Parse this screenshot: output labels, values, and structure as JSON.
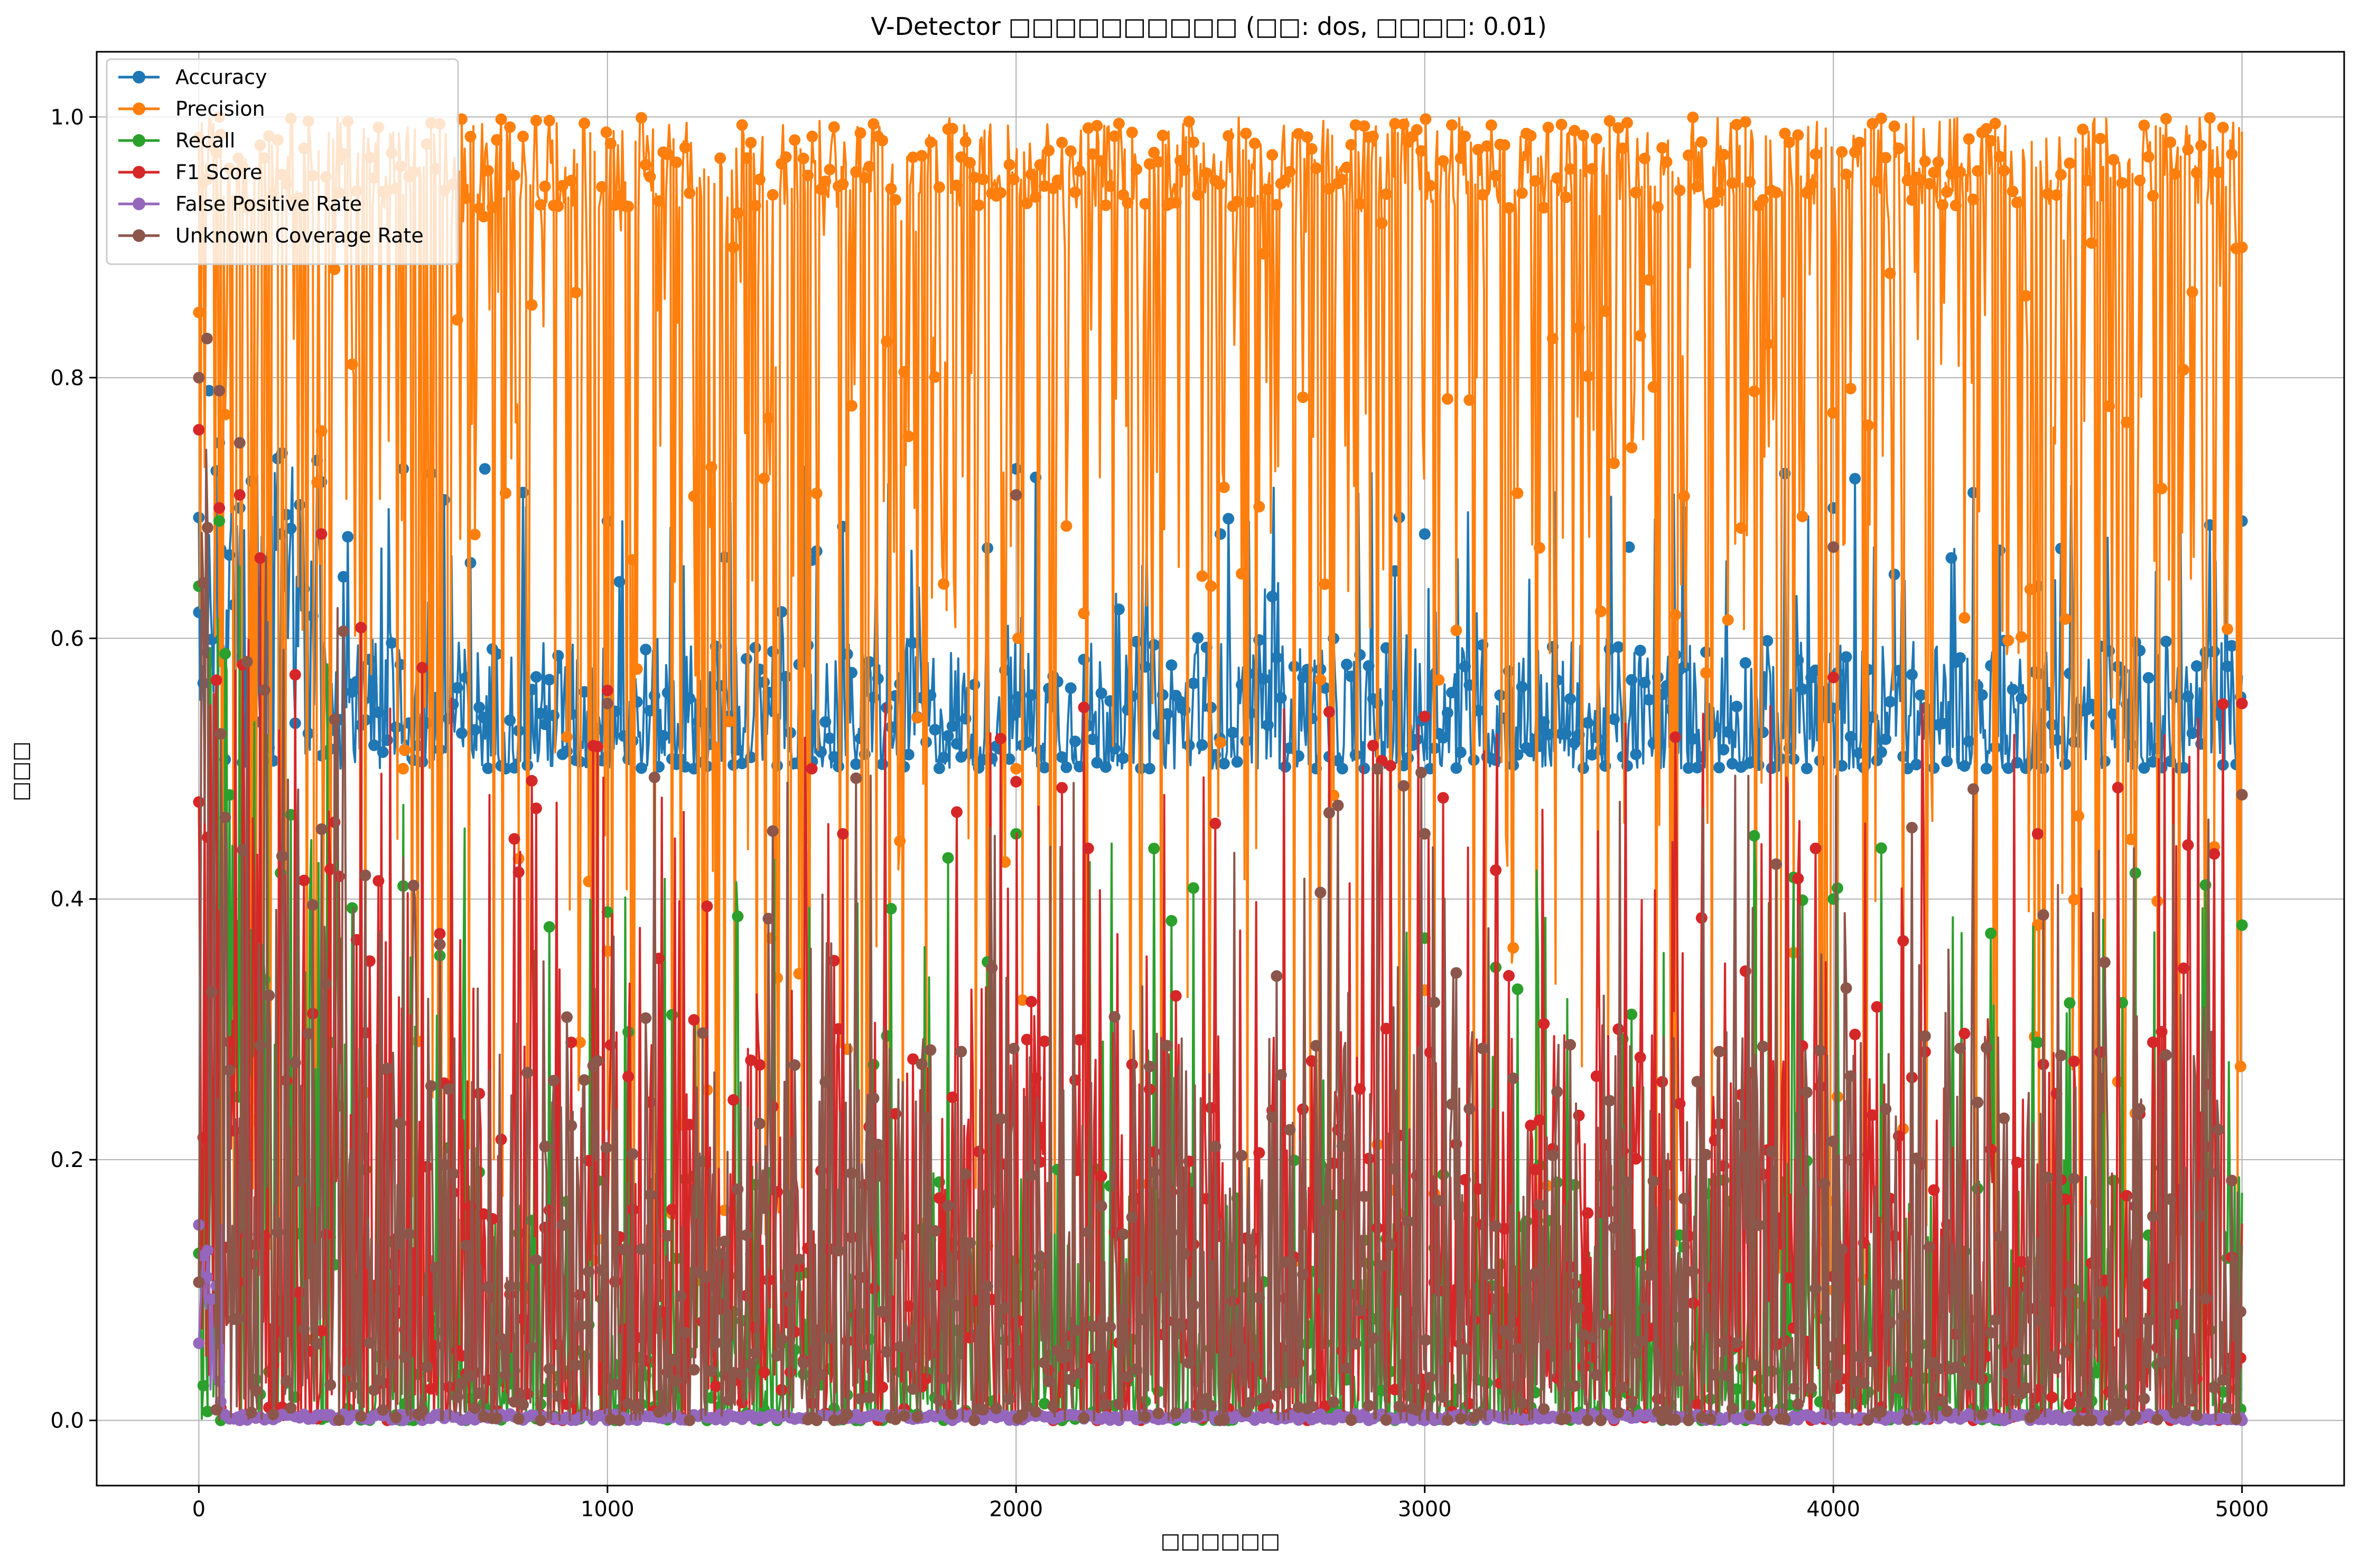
{
  "chart_data": {
    "type": "line",
    "title": "V-Detector □□□□□□□□□□ (□□: dos, □□□□: 0.01)",
    "xlabel": "□□□□□□",
    "ylabel": "□□□",
    "xlim": [
      -250,
      5250
    ],
    "ylim": [
      -0.05,
      1.05
    ],
    "x_ticks": [
      0,
      1000,
      2000,
      3000,
      4000,
      5000
    ],
    "x_tick_labels": [
      "0",
      "1000",
      "2000",
      "3000",
      "4000",
      "5000"
    ],
    "y_ticks": [
      0.0,
      0.2,
      0.4,
      0.6,
      0.8,
      1.0
    ],
    "y_tick_labels": [
      "0.0",
      "0.2",
      "0.4",
      "0.6",
      "0.8",
      "1.0"
    ],
    "grid": true,
    "legend_position": "top-left",
    "markers": "circle",
    "x_range": [
      0,
      5000
    ],
    "series": [
      {
        "name": "Accuracy",
        "color": "#1f77b4",
        "description_values": {
          "baseline": 0.5,
          "typical_max": 0.6,
          "peak": 0.76
        },
        "sample_x": [
          0,
          25,
          50,
          100,
          200,
          300,
          500,
          700,
          1000,
          1500,
          2000,
          2500,
          3000,
          3500,
          4000,
          4500,
          5000
        ],
        "sample_values": [
          0.62,
          0.79,
          0.75,
          0.7,
          0.68,
          0.72,
          0.73,
          0.73,
          0.69,
          0.66,
          0.73,
          0.68,
          0.68,
          0.67,
          0.7,
          0.64,
          0.69
        ]
      },
      {
        "name": "Precision",
        "color": "#ff7f0e",
        "description_values": {
          "typical_max": 1.0,
          "min": 0.09
        },
        "sample_x": [
          0,
          50,
          500,
          1000,
          1400,
          2000,
          2500,
          3000,
          3300,
          3500,
          3700,
          4000,
          4500,
          4600,
          5000
        ],
        "sample_values": [
          0.85,
          1.0,
          0.5,
          0.36,
          0.37,
          0.5,
          0.52,
          0.33,
          0.18,
          0.12,
          0.11,
          0.1,
          0.38,
          0.09,
          0.9
        ]
      },
      {
        "name": "Recall",
        "color": "#2ca02c",
        "sample_x": [
          0,
          50,
          200,
          500,
          1000,
          2000,
          3000,
          4000,
          4500,
          5000
        ],
        "sample_values": [
          0.64,
          0.69,
          0.42,
          0.41,
          0.39,
          0.45,
          0.37,
          0.4,
          0.29,
          0.38
        ]
      },
      {
        "name": "F1 Score",
        "color": "#d62728",
        "sample_x": [
          0,
          50,
          100,
          300,
          1000,
          1500,
          2000,
          3000,
          4000,
          4500,
          5000
        ],
        "sample_values": [
          0.76,
          0.7,
          0.71,
          0.68,
          0.56,
          0.5,
          0.49,
          0.54,
          0.57,
          0.45,
          0.55
        ]
      },
      {
        "name": "False Positive Rate",
        "color": "#9467bd",
        "sample_x": [
          0,
          20,
          50,
          100,
          500,
          1000,
          2000,
          3000,
          4000,
          5000
        ],
        "sample_values": [
          0.15,
          0.11,
          0.03,
          0.0,
          0.0,
          0.0,
          0.0,
          0.0,
          0.0,
          0.0
        ]
      },
      {
        "name": "Unknown Coverage Rate",
        "color": "#8c564b",
        "sample_x": [
          0,
          20,
          50,
          100,
          1000,
          2000,
          3000,
          4000,
          5000
        ],
        "sample_values": [
          0.8,
          0.83,
          0.79,
          0.75,
          0.55,
          0.71,
          0.45,
          0.67,
          0.48
        ]
      }
    ]
  }
}
